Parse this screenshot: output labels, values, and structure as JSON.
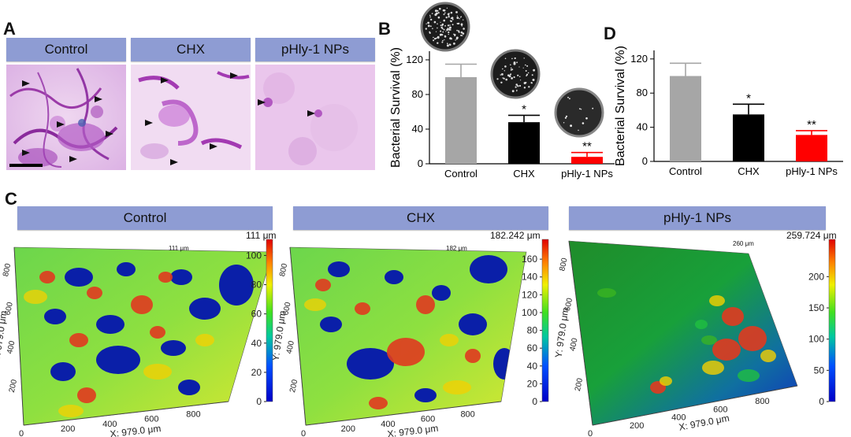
{
  "panels": {
    "a": "A",
    "b": "B",
    "c": "C",
    "d": "D"
  },
  "panel_a": {
    "headers": [
      "Control",
      "CHX",
      "pHly-1 NPs"
    ]
  },
  "panel_c": {
    "headers": [
      "Control",
      "CHX",
      "pHly-1 NPs"
    ],
    "maps": [
      {
        "max_label": "111 μm",
        "peak": "111 μm",
        "ticks": [
          "100",
          "80",
          "60",
          "40",
          "20",
          "0"
        ]
      },
      {
        "max_label": "182.242 μm",
        "peak": "182 μm",
        "ticks": [
          "160",
          "140",
          "120",
          "100",
          "80",
          "60",
          "40",
          "20",
          "0"
        ]
      },
      {
        "max_label": "259.724 μm",
        "peak": "260 μm",
        "ticks": [
          "200",
          "150",
          "100",
          "50",
          "0"
        ]
      }
    ],
    "x_axis_label": "X: 979.0 μm",
    "y_axis_label": "Y: 979.0 μm",
    "x_ticks": [
      "0",
      "200",
      "400",
      "600",
      "800"
    ],
    "y_ticks": [
      "200",
      "400",
      "600",
      "800"
    ]
  },
  "chart_data": [
    {
      "type": "bar",
      "ylabel": "Bacterial Survival (%)",
      "categories": [
        "Control",
        "CHX",
        "pHly-1 NPs"
      ],
      "values": [
        100,
        48,
        8
      ],
      "errors": [
        15,
        8,
        5
      ],
      "sig": [
        "",
        "*",
        "**"
      ],
      "colors": [
        "#a6a6a6",
        "#000000",
        "#ff0000"
      ],
      "ylim": [
        0,
        130
      ],
      "yticks": [
        "0",
        "40",
        "80",
        "120"
      ]
    },
    {
      "type": "bar",
      "ylabel": "Bacterial Survival (%)",
      "categories": [
        "Control",
        "CHX",
        "pHly-1 NPs"
      ],
      "values": [
        100,
        55,
        31
      ],
      "errors": [
        15,
        12,
        5
      ],
      "sig": [
        "",
        "*",
        "**"
      ],
      "colors": [
        "#a6a6a6",
        "#000000",
        "#ff0000"
      ],
      "ylim": [
        0,
        130
      ],
      "yticks": [
        "0",
        "40",
        "80",
        "120"
      ]
    }
  ]
}
